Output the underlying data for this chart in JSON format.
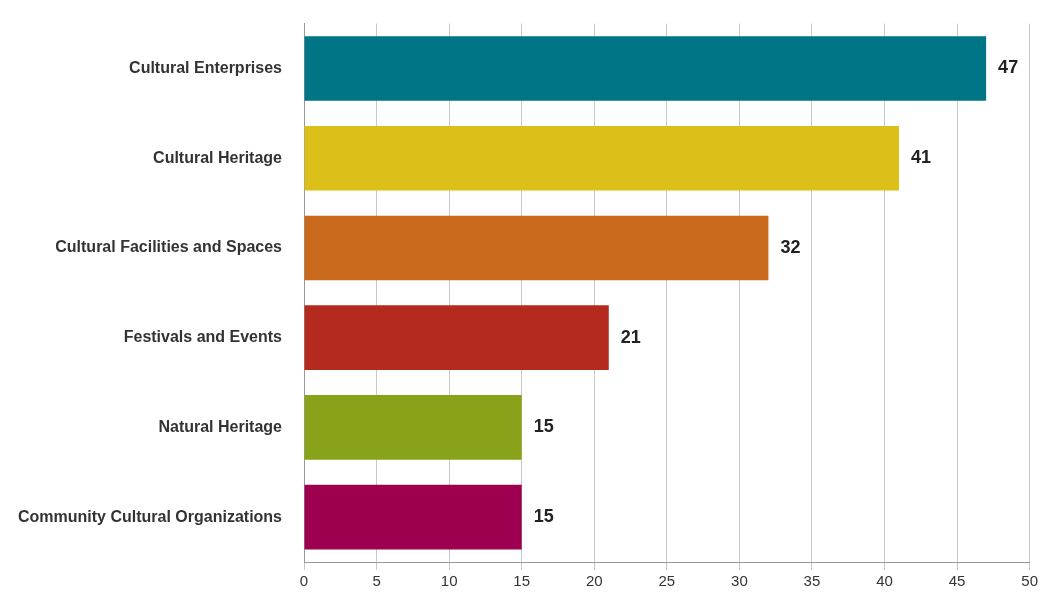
{
  "chart_data": {
    "type": "bar",
    "orientation": "horizontal",
    "categories": [
      "Cultural Enterprises",
      "Cultural Heritage",
      "Cultural Facilities and Spaces",
      "Festivals and Events",
      "Natural Heritage",
      "Community Cultural Organizations"
    ],
    "values": [
      47,
      41,
      32,
      21,
      15,
      15
    ],
    "colors": [
      "#007585",
      "#dbc01a",
      "#c8691c",
      "#b52a1e",
      "#88a319",
      "#9e0050"
    ],
    "xlim": [
      0,
      50
    ],
    "xticks": [
      0,
      5,
      10,
      15,
      20,
      25,
      30,
      35,
      40,
      45,
      50
    ],
    "grid": "x",
    "legend": false,
    "data_labels": true
  }
}
